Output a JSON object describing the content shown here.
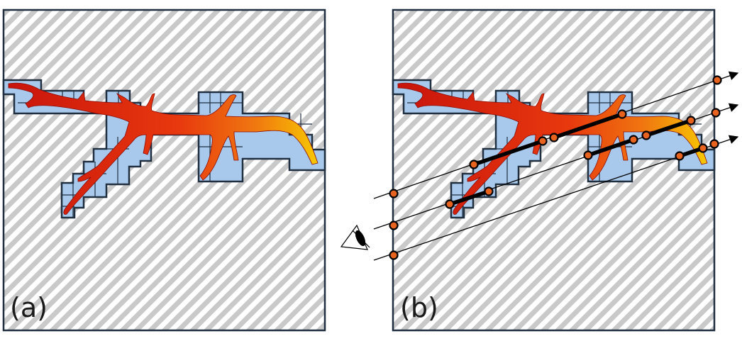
{
  "figure": {
    "panels": [
      {
        "id": "a",
        "label": "(a)"
      },
      {
        "id": "b",
        "label": "(b)"
      }
    ],
    "colors": {
      "background_hatch": "#c9c9c9",
      "frame": "#1f2f40",
      "cell_fill": "#a8c8ec",
      "vessel_red": "#d8170e",
      "vessel_orange": "#f07810",
      "vessel_yellow": "#f8c800",
      "ray": "#000000",
      "sample_point": "#e8641e"
    },
    "icons": {
      "viewer": "eye-icon"
    }
  }
}
